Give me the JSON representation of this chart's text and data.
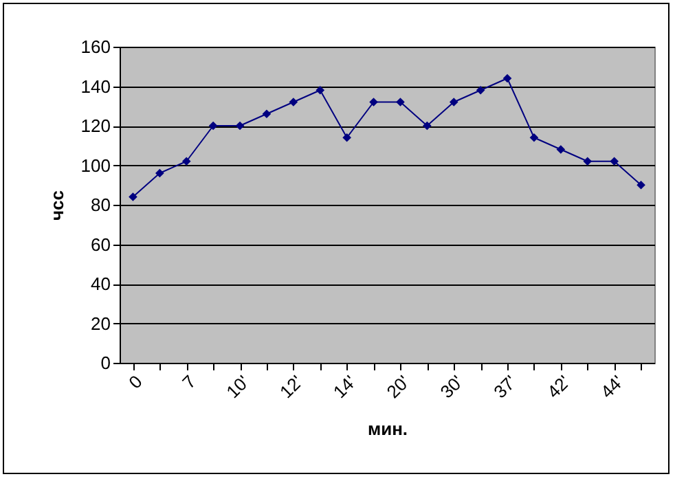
{
  "chart_data": {
    "type": "line",
    "xlabel": "мин.",
    "ylabel": "чсс",
    "categories": [
      "0",
      null,
      "7",
      null,
      "10'",
      null,
      "12'",
      null,
      "14'",
      null,
      "20'",
      null,
      "30'",
      null,
      "37'",
      null,
      "42'",
      null,
      "44'",
      null
    ],
    "series": [
      {
        "color": "#000080",
        "values": [
          84,
          96,
          102,
          120,
          120,
          126,
          132,
          138,
          114,
          132,
          132,
          120,
          132,
          138,
          144,
          114,
          108,
          102,
          102,
          90
        ]
      }
    ],
    "ylim": [
      0,
      160
    ],
    "yticks": [
      0,
      20,
      40,
      60,
      80,
      100,
      120,
      140,
      160
    ],
    "grid": "y",
    "legend": false,
    "marker": "diamond",
    "line_style": "solid"
  }
}
